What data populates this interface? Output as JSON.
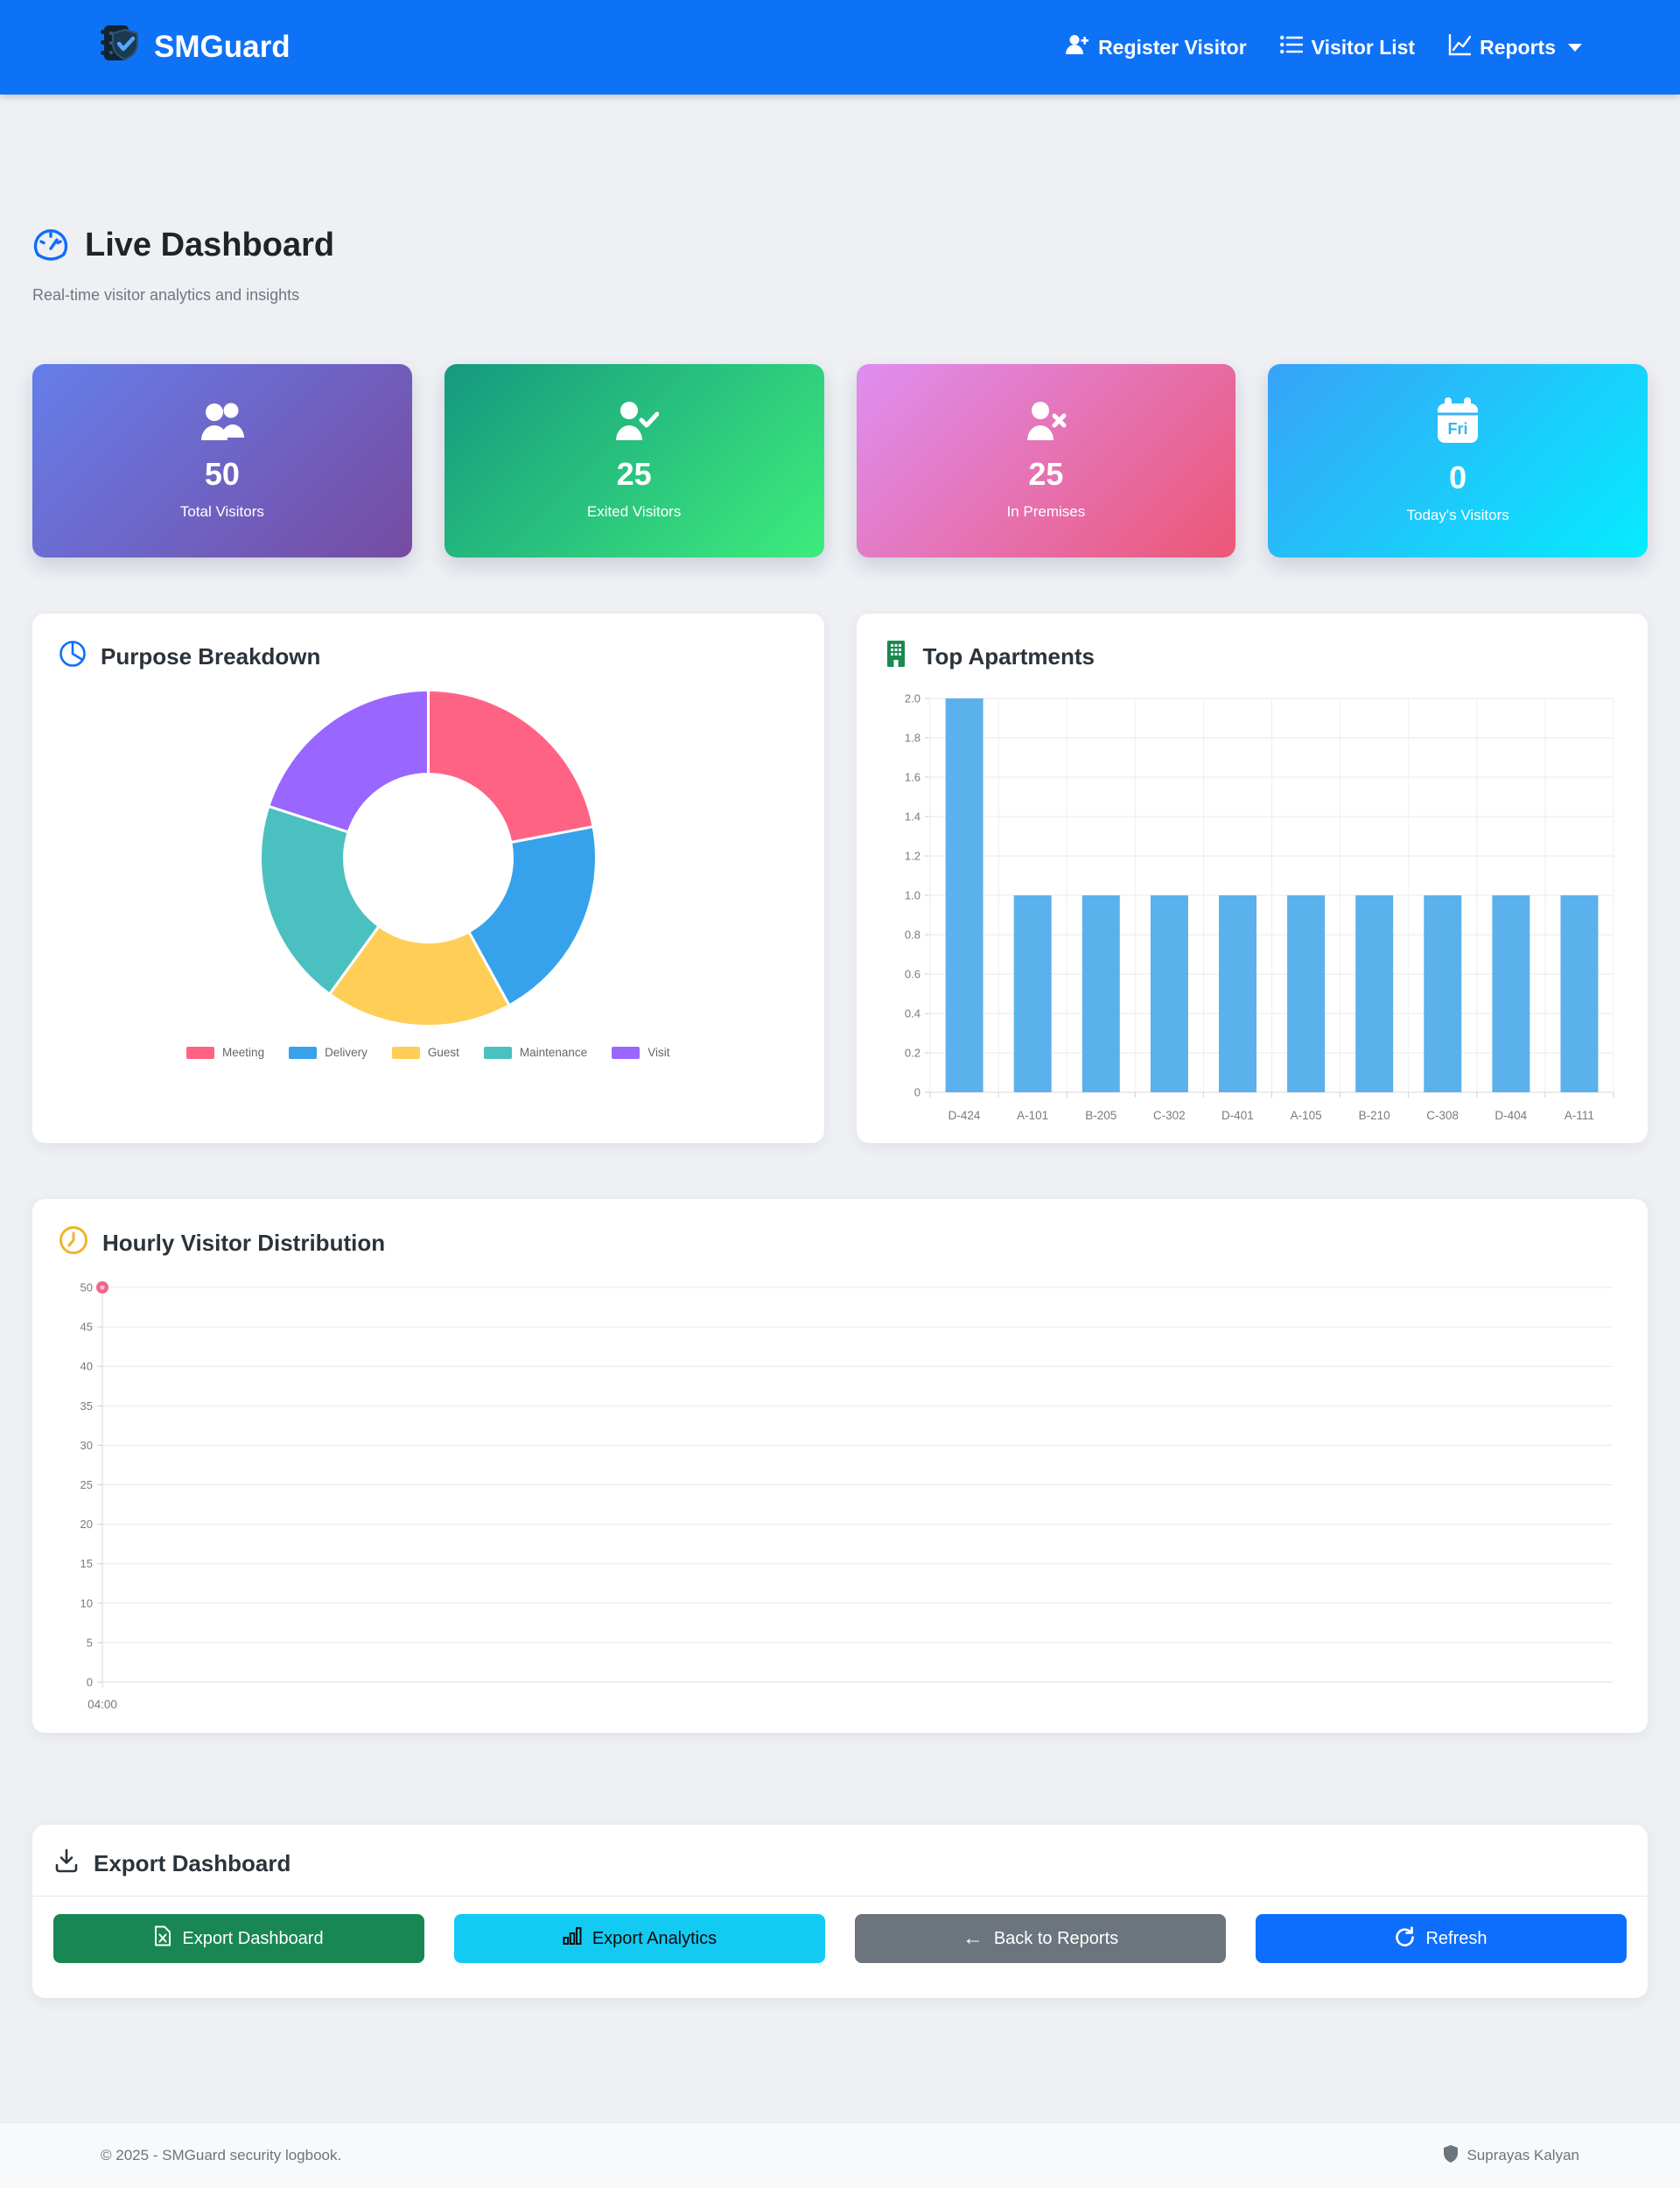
{
  "navbar": {
    "brand": "SMGuard",
    "items": [
      {
        "label": "Register Visitor",
        "icon": "person-plus-icon"
      },
      {
        "label": "Visitor List",
        "icon": "list-icon"
      },
      {
        "label": "Reports",
        "icon": "graph-icon",
        "has_caret": true
      }
    ]
  },
  "page": {
    "title": "Live Dashboard",
    "subtitle": "Real-time visitor analytics and insights"
  },
  "stats": [
    {
      "value": "50",
      "label": "Total Visitors",
      "icon": "users-icon",
      "gradient": [
        "#667eea",
        "#764ba2"
      ]
    },
    {
      "value": "25",
      "label": "Exited Visitors",
      "icon": "person-check-icon",
      "gradient": [
        "#15997f",
        "#3dec7c"
      ]
    },
    {
      "value": "25",
      "label": "In Premises",
      "icon": "person-x-icon",
      "gradient": [
        "#df8ef1",
        "#ec5776"
      ]
    },
    {
      "value": "0",
      "label": "Today's Visitors",
      "icon": "calendar-fri-icon",
      "calendar_text": "Fri",
      "gradient": [
        "#38a2f7",
        "#05ecfe"
      ]
    }
  ],
  "sections": {
    "purpose": {
      "title": "Purpose Breakdown"
    },
    "apartments": {
      "title": "Top Apartments"
    },
    "hourly": {
      "title": "Hourly Visitor Distribution"
    },
    "export": {
      "title": "Export Dashboard"
    }
  },
  "export_buttons": [
    {
      "label": "Export Dashboard",
      "icon": "file-excel-icon",
      "color": "#198754",
      "text_color": "#ffffff"
    },
    {
      "label": "Export Analytics",
      "icon": "bar-chart-icon",
      "color": "#13cbf2",
      "text_color": "#0b0b0b"
    },
    {
      "label": "Back to Reports",
      "icon": "arrow-left-icon",
      "color": "#6c757d",
      "text_color": "#ffffff"
    },
    {
      "label": "Refresh",
      "icon": "refresh-icon",
      "color": "#0d6efd",
      "text_color": "#ffffff"
    }
  ],
  "footer": {
    "copyright": "© 2025 - SMGuard security logbook.",
    "user": "Suprayas Kalyan"
  },
  "chart_data": [
    {
      "type": "pie",
      "variant": "donut",
      "title": "Purpose Breakdown",
      "labels": [
        "Meeting",
        "Delivery",
        "Guest",
        "Maintenance",
        "Visit"
      ],
      "values": [
        11,
        10,
        9,
        10,
        10
      ],
      "total": 50,
      "colors": [
        "#FF6384",
        "#36A2EB",
        "#FFCE56",
        "#4BC0C0",
        "#9966FF"
      ],
      "legend_position": "bottom"
    },
    {
      "type": "bar",
      "title": "Top Apartments",
      "categories": [
        "D-424",
        "A-101",
        "B-205",
        "C-302",
        "D-401",
        "A-105",
        "B-210",
        "C-308",
        "D-404",
        "A-111"
      ],
      "values": [
        2,
        1,
        1,
        1,
        1,
        1,
        1,
        1,
        1,
        1
      ],
      "bar_color": "#5bb1ec",
      "ylim": [
        0,
        2
      ],
      "ytick_step": 0.2,
      "grid": true
    },
    {
      "type": "line",
      "title": "Hourly Visitor Distribution",
      "x": [
        "04:00"
      ],
      "values": [
        50
      ],
      "point_color": "#f1638e",
      "point_center_color": "#f6bcca",
      "ylim": [
        0,
        50
      ],
      "ytick_step": 5,
      "grid": true
    }
  ]
}
